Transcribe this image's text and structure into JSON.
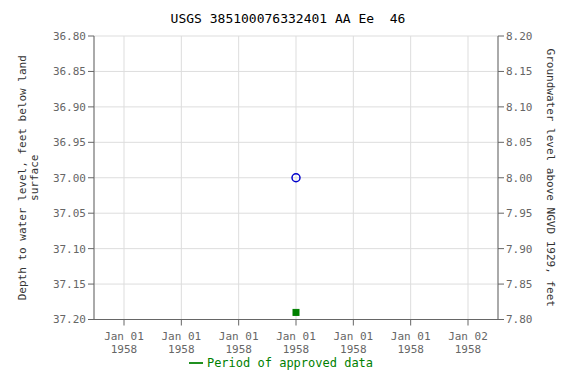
{
  "chart_data": {
    "type": "scatter",
    "title": "USGS 385100076332401 AA Ee  46",
    "categories": [
      "Jan 01\n1958",
      "Jan 01\n1958",
      "Jan 01\n1958",
      "Jan 01\n1958",
      "Jan 01\n1958",
      "Jan 01\n1958",
      "Jan 02\n1958"
    ],
    "series": [
      {
        "color": "#0000cc",
        "marker": "circle",
        "values": [
          null,
          null,
          null,
          37.0,
          null,
          null,
          null
        ]
      },
      {
        "name": "Period of approved data",
        "color": "#008000",
        "marker": "square",
        "values": [
          null,
          null,
          null,
          37.19,
          null,
          null,
          null
        ]
      }
    ],
    "ylabel": "Depth to water level, feet below land\n surface",
    "y2label": "Groundwater level above NGVD 1929, feet",
    "ylim": [
      37.2,
      36.8
    ],
    "yticks": [
      {
        "value": 36.8,
        "label": "36.80"
      },
      {
        "value": 36.85,
        "label": "36.85"
      },
      {
        "value": 36.9,
        "label": "36.90"
      },
      {
        "value": 36.95,
        "label": "36.95"
      },
      {
        "value": 37.0,
        "label": "37.00"
      },
      {
        "value": 37.05,
        "label": "37.05"
      },
      {
        "value": 37.1,
        "label": "37.10"
      },
      {
        "value": 37.15,
        "label": "37.15"
      },
      {
        "value": 37.2,
        "label": "37.20"
      }
    ],
    "y2lim": [
      7.8,
      8.2
    ],
    "y2ticks": [
      {
        "value": 8.2,
        "label": "8.20"
      },
      {
        "value": 8.15,
        "label": "8.15"
      },
      {
        "value": 8.1,
        "label": "8.10"
      },
      {
        "value": 8.05,
        "label": "8.05"
      },
      {
        "value": 8.0,
        "label": "8.00"
      },
      {
        "value": 7.95,
        "label": "7.95"
      },
      {
        "value": 7.9,
        "label": "7.90"
      },
      {
        "value": 7.85,
        "label": "7.85"
      },
      {
        "value": 7.8,
        "label": "7.80"
      }
    ],
    "grid": true,
    "legend": "bottom"
  }
}
